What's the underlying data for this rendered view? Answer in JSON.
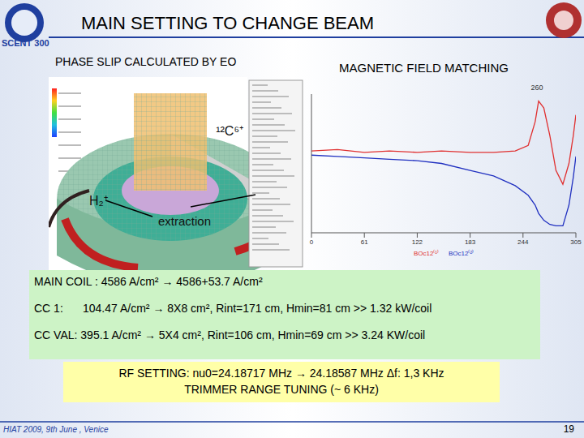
{
  "header": {
    "title": "MAIN SETTING TO CHANGE BEAM",
    "logo": "SCENT 300"
  },
  "left_panel": {
    "title": "PHASE SLIP CALCULATED BY EO",
    "labels": {
      "beam1": "¹²C⁶⁺",
      "beam2": "H₂⁺",
      "extraction": "extraction"
    }
  },
  "chart_data": {
    "type": "line",
    "title": "MAGNETIC FIELD MATCHING",
    "x": [
      0,
      30,
      61,
      90,
      122,
      150,
      183,
      210,
      235,
      250,
      258,
      262,
      268,
      275,
      282,
      290,
      297,
      302,
      305
    ],
    "series": [
      {
        "name": "BOc12⁽¹⁾",
        "color": "#e03030",
        "values": [
          59,
          60,
          58,
          59,
          58,
          59,
          58,
          58,
          59,
          63,
          80,
          95,
          90,
          70,
          45,
          35,
          50,
          70,
          85
        ]
      },
      {
        "name": "BOc12⁽²⁾",
        "color": "#2030c0",
        "values": [
          56,
          55,
          54,
          53,
          52,
          50,
          45,
          41,
          34,
          27,
          20,
          14,
          9,
          6,
          5,
          5,
          20,
          40,
          55
        ]
      }
    ],
    "xlim": [
      0,
      305
    ],
    "xticks": [
      0,
      61,
      122,
      183,
      244,
      305
    ],
    "ylim": [
      0,
      100
    ],
    "tick_labels": "x",
    "grid": false,
    "annotations": [
      {
        "x": 260,
        "text": "260"
      }
    ]
  },
  "settings": {
    "main_coil": "MAIN COIL : 4586 A/cm² → 4586+53.7 A/cm²",
    "cc1": {
      "label": "CC 1:",
      "text": "104.47 A/cm² → 8X8 cm², Rint=171 cm, Hmin=81 cm >> 1.32 kW/coil"
    },
    "cc_val": "CC VAL: 395.1 A/cm² → 5X4 cm², Rint=106 cm, Hmin=69 cm >> 3.24 KW/coil"
  },
  "rf": {
    "line1": "RF SETTING: nu0=24.18717 MHz → 24.18587 MHz  Δf: 1,3 KHz",
    "line2": "TRIMMER RANGE TUNING (~ 6 KHz)"
  },
  "footer": {
    "event": "HIAT 2009, 9th June , Venice",
    "page": "19"
  }
}
